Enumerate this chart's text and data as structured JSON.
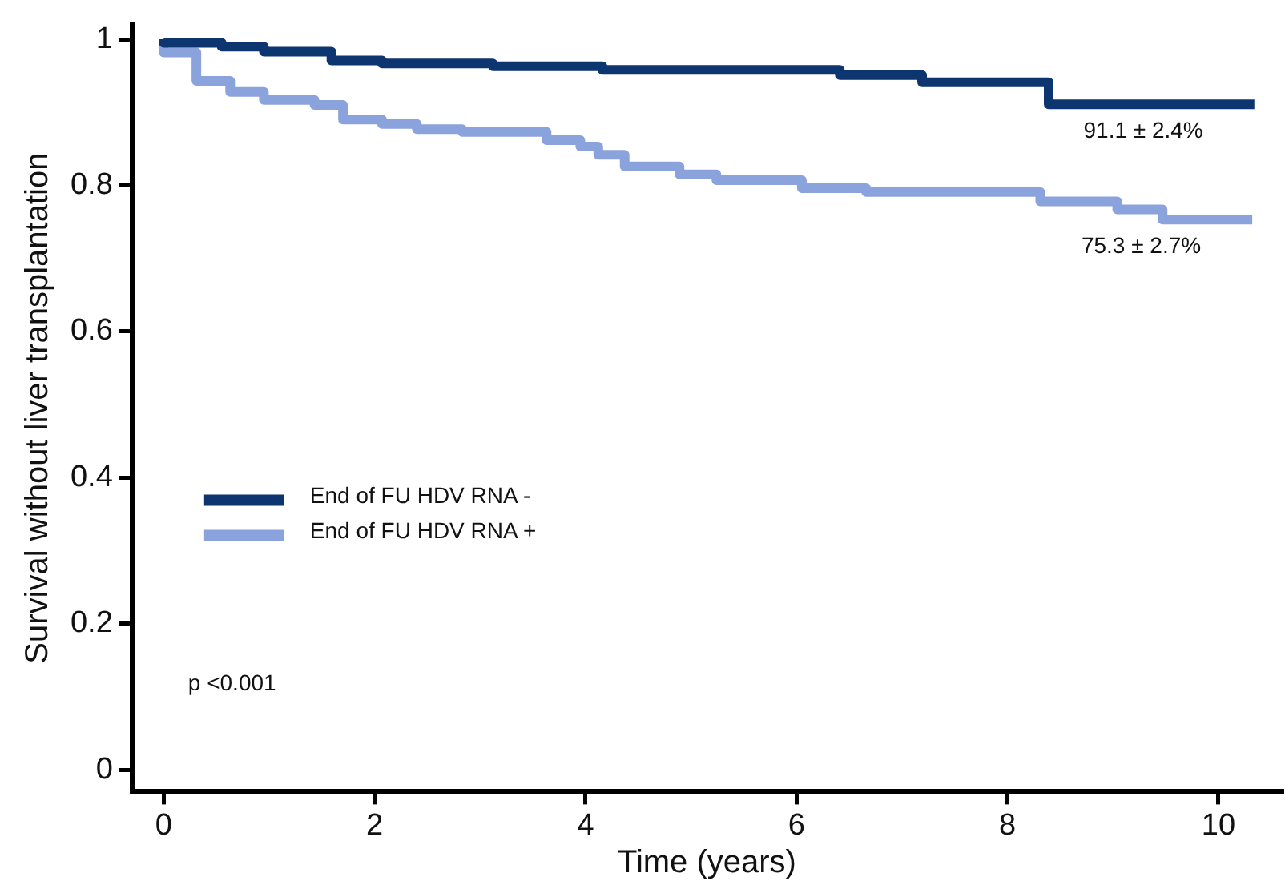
{
  "chart_data": {
    "type": "step",
    "xlabel": "Time (years)",
    "ylabel": "Survival without liver transplantation",
    "xlim": [
      -0.3,
      10.6
    ],
    "xticks": [
      0,
      2,
      4,
      6,
      8,
      10
    ],
    "ylim": [
      -0.03,
      1.02
    ],
    "yticks": [
      0,
      0.2,
      0.4,
      0.6,
      0.8,
      {
        "value": 1,
        "label": "1"
      }
    ],
    "grid": false,
    "legend": "left",
    "marker": "none",
    "line_style": "solid",
    "series": [
      {
        "name": "End of FU HDV RNA -",
        "color": "#0d3570",
        "x": [
          0,
          0.55,
          0.95,
          1.59,
          2.07,
          3.12,
          4.16,
          6.41,
          7.19,
          8.39,
          9.58,
          10.34
        ],
        "values": [
          1,
          0.995,
          0.99,
          0.983,
          0.971,
          0.967,
          0.963,
          0.958,
          0.951,
          0.941,
          0.911,
          0.911
        ]
      },
      {
        "name": "End of FU HDV RNA +",
        "color": "#8ba3dc",
        "x": [
          0,
          0.31,
          0.63,
          0.95,
          1.43,
          1.7,
          2.07,
          2.4,
          2.83,
          3.63,
          3.95,
          4.12,
          4.37,
          4.89,
          5.24,
          6.05,
          6.66,
          8.31,
          9.04,
          9.47,
          9.95,
          10.32
        ],
        "values": [
          1,
          0.982,
          0.943,
          0.928,
          0.917,
          0.91,
          0.89,
          0.884,
          0.877,
          0.873,
          0.862,
          0.853,
          0.842,
          0.826,
          0.815,
          0.807,
          0.796,
          0.791,
          0.778,
          0.767,
          0.753,
          0.753
        ]
      }
    ],
    "annotations": [
      {
        "text": "91.1 ± 2.4%",
        "x": 10.34,
        "y": 0.911
      },
      {
        "text": "75.3 ± 2.7%",
        "x": 10.32,
        "y": 0.753
      },
      "p <0.001"
    ]
  }
}
